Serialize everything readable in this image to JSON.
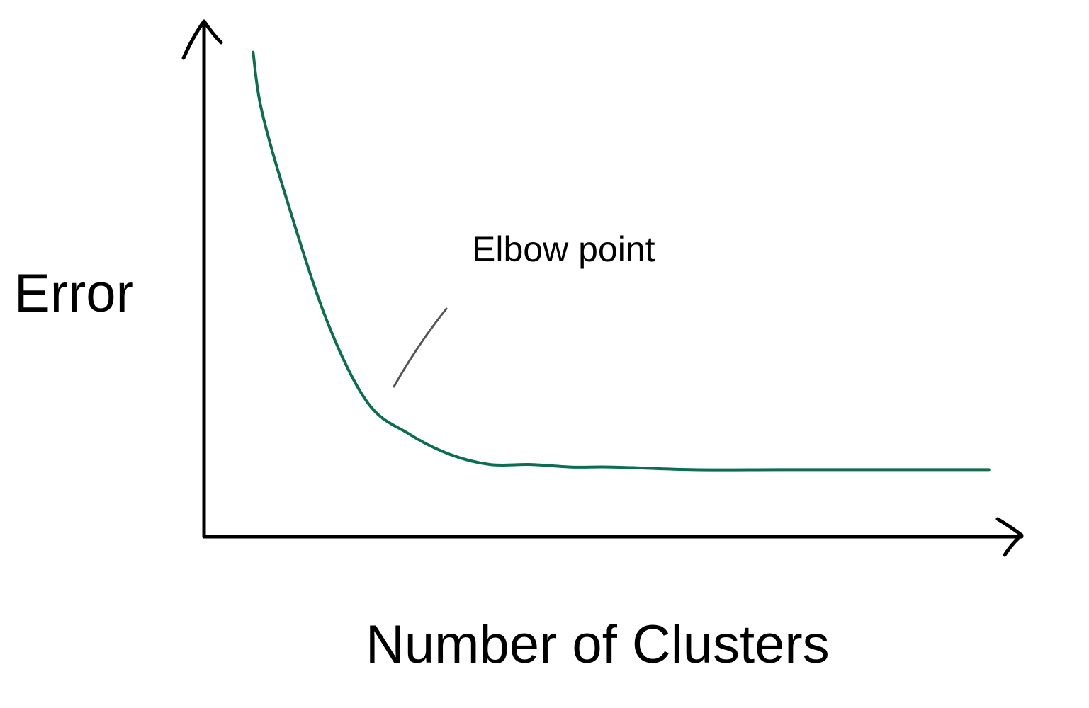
{
  "chart_data": {
    "type": "line",
    "xlabel": "Number of Clusters",
    "ylabel": "Error",
    "xlim": [
      0,
      10
    ],
    "ylim": [
      0,
      10
    ],
    "grid": false,
    "series": [
      {
        "color": "#0b6e4f",
        "x": [
          0.6,
          0.7,
          1.0,
          1.5,
          2.0,
          2.5,
          3.0,
          3.5,
          4.0,
          4.5,
          5.0,
          6.0,
          7.0,
          8.0,
          9.0,
          9.6
        ],
        "y": [
          9.4,
          8.3,
          6.6,
          4.2,
          2.6,
          2.0,
          1.6,
          1.4,
          1.4,
          1.35,
          1.35,
          1.3,
          1.3,
          1.3,
          1.3,
          1.3
        ]
      }
    ],
    "annotations": [
      {
        "text": "Elbow point",
        "x": 2.4,
        "y": 2.8
      }
    ],
    "colors": {
      "axis": "#000000",
      "line": "#0b6e4f",
      "pointer": "#555555"
    }
  }
}
